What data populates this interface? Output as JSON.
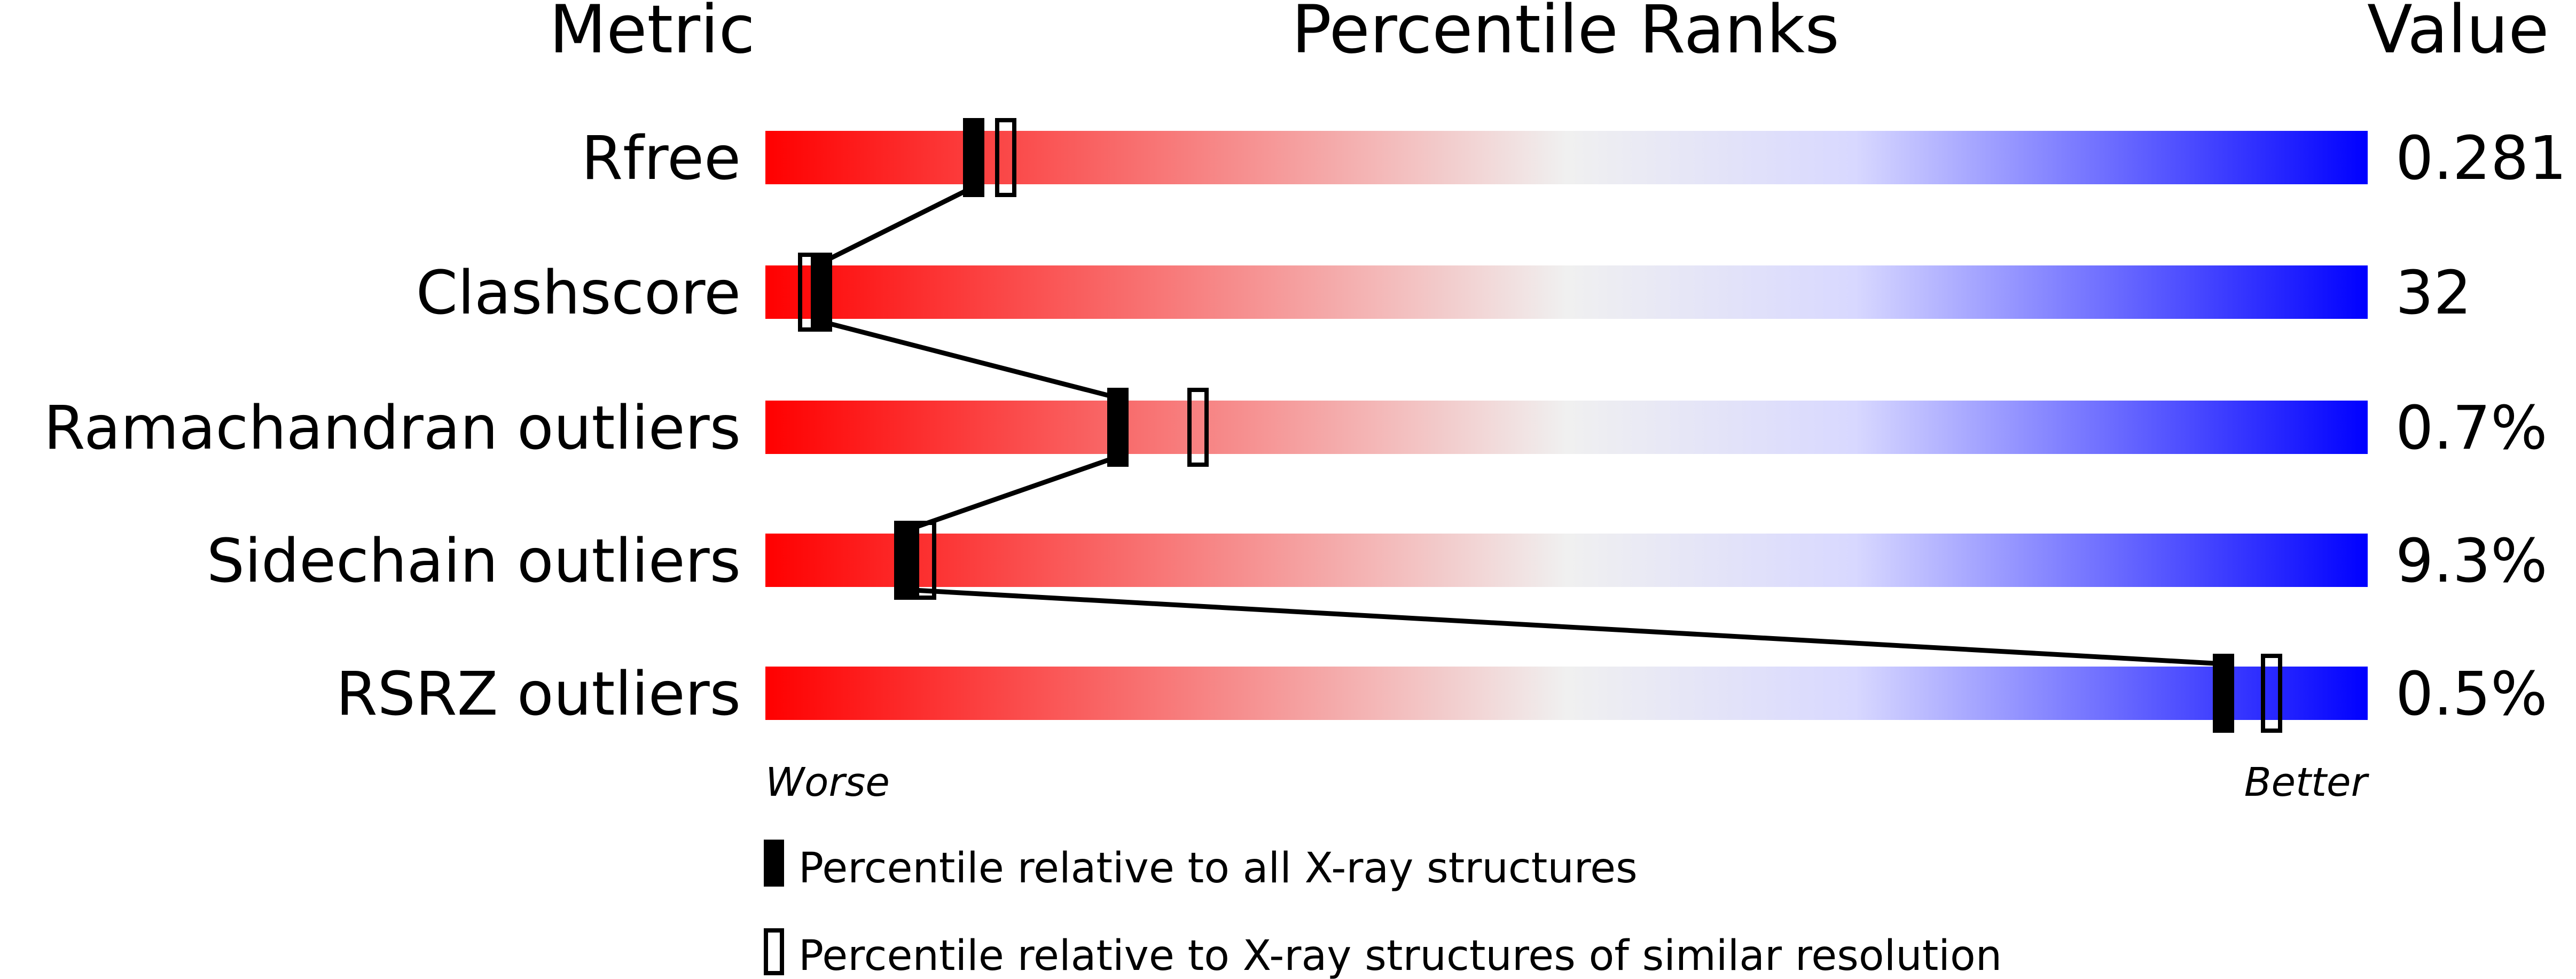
{
  "chart_data": {
    "type": "percentile-bar",
    "headers": {
      "metric": "Metric",
      "ranks": "Percentile Ranks",
      "value": "Value"
    },
    "xlim": [
      0,
      100
    ],
    "axis_labels": {
      "left": "Worse",
      "right": "Better"
    },
    "gradient_colors": [
      "#ff0000",
      "#f0f0f0",
      "#d8d8ff",
      "#0000ff"
    ],
    "metrics": [
      {
        "name": "Rfree",
        "value": "0.281",
        "percentile_all": 13,
        "percentile_similar": 15
      },
      {
        "name": "Clashscore",
        "value": "32",
        "percentile_all": 3.5,
        "percentile_similar": 2.7
      },
      {
        "name": "Ramachandran outliers",
        "value": "0.7%",
        "percentile_all": 22,
        "percentile_similar": 27
      },
      {
        "name": "Sidechain outliers",
        "value": "9.3%",
        "percentile_all": 8.7,
        "percentile_similar": 10
      },
      {
        "name": "RSRZ outliers",
        "value": "0.5%",
        "percentile_all": 91,
        "percentile_similar": 94
      }
    ],
    "legend": [
      {
        "marker": "filled",
        "label": "Percentile relative to all X-ray structures"
      },
      {
        "marker": "open",
        "label": "Percentile relative to X-ray structures of similar resolution"
      }
    ]
  }
}
